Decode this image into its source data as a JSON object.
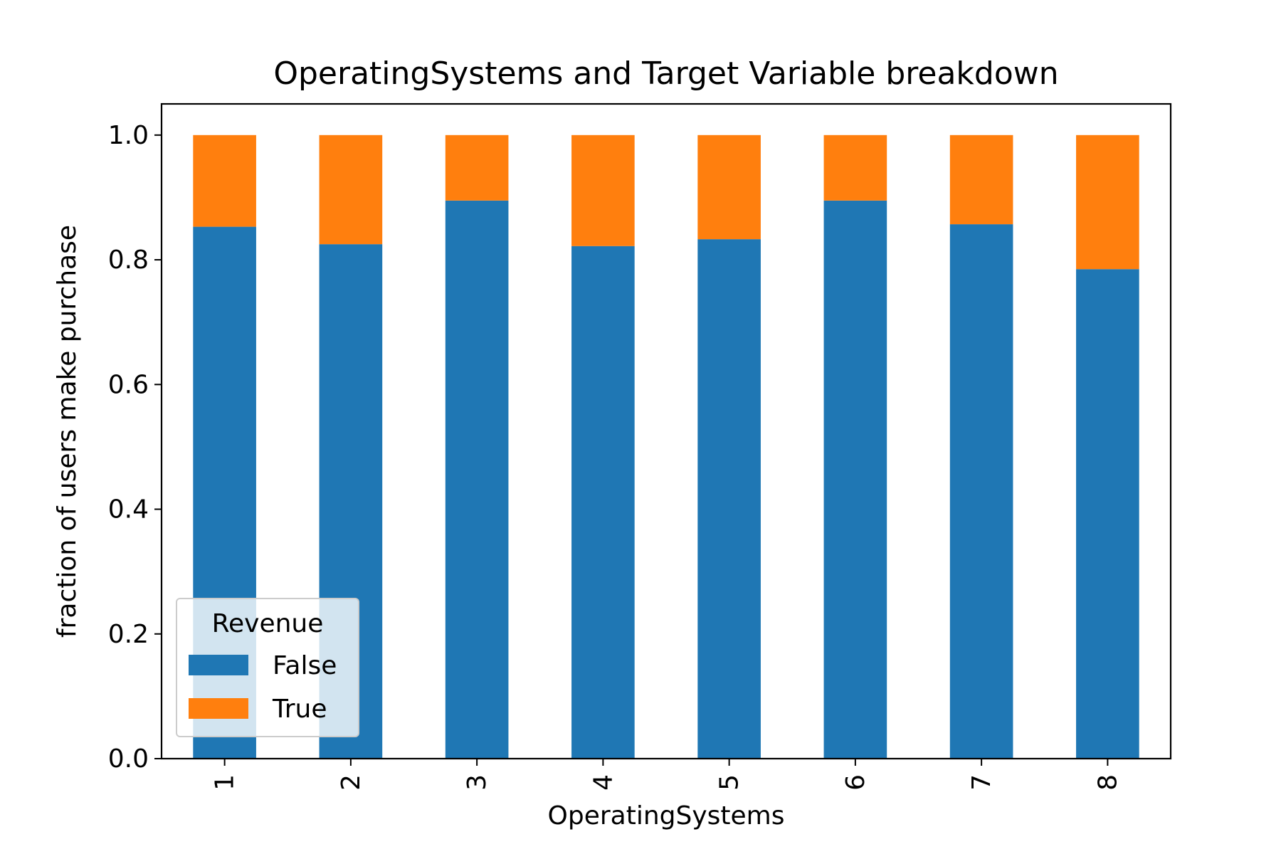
{
  "chart_data": {
    "type": "bar",
    "stacked": true,
    "title": "OperatingSystems and Target Variable breakdown",
    "xlabel": "OperatingSystems",
    "ylabel": "fraction of users make purchase",
    "categories": [
      "1",
      "2",
      "3",
      "4",
      "5",
      "6",
      "7",
      "8"
    ],
    "series": [
      {
        "name": "False",
        "color": "#1f77b4",
        "values": [
          0.853,
          0.825,
          0.895,
          0.822,
          0.833,
          0.895,
          0.857,
          0.785
        ]
      },
      {
        "name": "True",
        "color": "#ff7f0e",
        "values": [
          0.147,
          0.175,
          0.105,
          0.178,
          0.167,
          0.105,
          0.143,
          0.215
        ]
      }
    ],
    "ylim": [
      0,
      1.05
    ],
    "yticks": [
      "0.0",
      "0.2",
      "0.4",
      "0.6",
      "0.8",
      "1.0"
    ],
    "grid": false,
    "legend": {
      "title": "Revenue",
      "placement": "lower-left"
    }
  }
}
